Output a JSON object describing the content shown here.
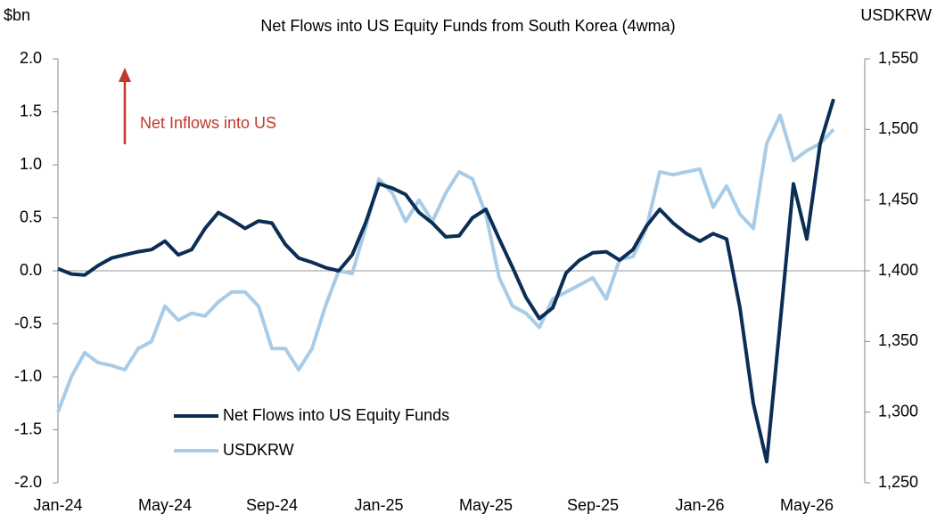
{
  "chart_data": {
    "type": "line",
    "title": "Net Flows into US Equity Funds from South Korea (4wma)",
    "y_label": "$bn",
    "y2_label": "USDKRW",
    "annotation": "Net Inflows into US",
    "annotation_color": "#c0392b",
    "categories": [
      "Jan-24",
      null,
      null,
      null,
      null,
      null,
      null,
      null,
      "May-24",
      null,
      null,
      null,
      null,
      null,
      null,
      null,
      "Sep-24",
      null,
      null,
      null,
      null,
      null,
      null,
      null,
      "Jan-25",
      null,
      null,
      null,
      null,
      null,
      null,
      null,
      "May-25",
      null,
      null,
      null,
      null,
      null,
      null,
      null,
      "Sep-25",
      null,
      null,
      null,
      null,
      null,
      null,
      null,
      "Jan-26",
      null,
      null,
      null,
      null,
      null,
      null,
      null,
      "May-26",
      null,
      null
    ],
    "series": [
      {
        "name": "Net Flows into US Equity Funds",
        "color": "#0b2e55",
        "values": [
          0.02,
          -0.03,
          -0.04,
          0.05,
          0.12,
          0.15,
          0.18,
          0.2,
          0.28,
          0.15,
          0.2,
          0.4,
          0.55,
          0.48,
          0.4,
          0.47,
          0.45,
          0.25,
          0.12,
          0.08,
          0.03,
          0.0,
          0.15,
          0.45,
          0.82,
          0.78,
          0.72,
          0.55,
          0.45,
          0.32,
          0.33,
          0.5,
          0.58,
          0.3,
          0.03,
          -0.25,
          -0.45,
          -0.35,
          -0.02,
          0.1,
          0.17,
          0.18,
          0.1,
          0.2,
          0.42,
          0.58,
          0.45,
          0.35,
          0.28,
          0.35,
          0.3,
          -0.35,
          -1.25,
          -1.8,
          -0.5,
          0.82,
          0.3,
          1.2,
          1.62
        ]
      },
      {
        "name": "USDKRW",
        "color": "#a8cce8",
        "axis": "y2",
        "values": [
          1300,
          1325,
          1342,
          1335,
          1333,
          1330,
          1345,
          1350,
          1375,
          1365,
          1370,
          1368,
          1378,
          1385,
          1385,
          1375,
          1345,
          1345,
          1330,
          1345,
          1375,
          1400,
          1398,
          1430,
          1465,
          1455,
          1435,
          1450,
          1435,
          1455,
          1470,
          1465,
          1440,
          1395,
          1375,
          1370,
          1360,
          1380,
          1385,
          1390,
          1395,
          1380,
          1408,
          1410,
          1430,
          1470,
          1468,
          1470,
          1472,
          1445,
          1460,
          1440,
          1430,
          1490,
          1510,
          1478,
          1485,
          1490,
          1500
        ]
      }
    ],
    "ylim": [
      -2,
      2
    ],
    "yticks": [
      {
        "value": -2,
        "label": "-2.0"
      },
      -1.5,
      {
        "value": -1,
        "label": "-1.0"
      },
      -0.5,
      {
        "value": 0,
        "label": "0.0"
      },
      0.5,
      {
        "value": 1,
        "label": "1.0"
      },
      1.5,
      {
        "value": 2,
        "label": "2.0"
      }
    ],
    "y2lim": [
      1250,
      1550
    ],
    "y2ticks": [
      {
        "value": 1250,
        "label": "1,250"
      },
      {
        "value": 1300,
        "label": "1,300"
      },
      {
        "value": 1350,
        "label": "1,350"
      },
      {
        "value": 1400,
        "label": "1,400"
      },
      {
        "value": 1450,
        "label": "1,450"
      },
      {
        "value": 1500,
        "label": "1,500"
      },
      {
        "value": 1550,
        "label": "1,550"
      }
    ]
  }
}
